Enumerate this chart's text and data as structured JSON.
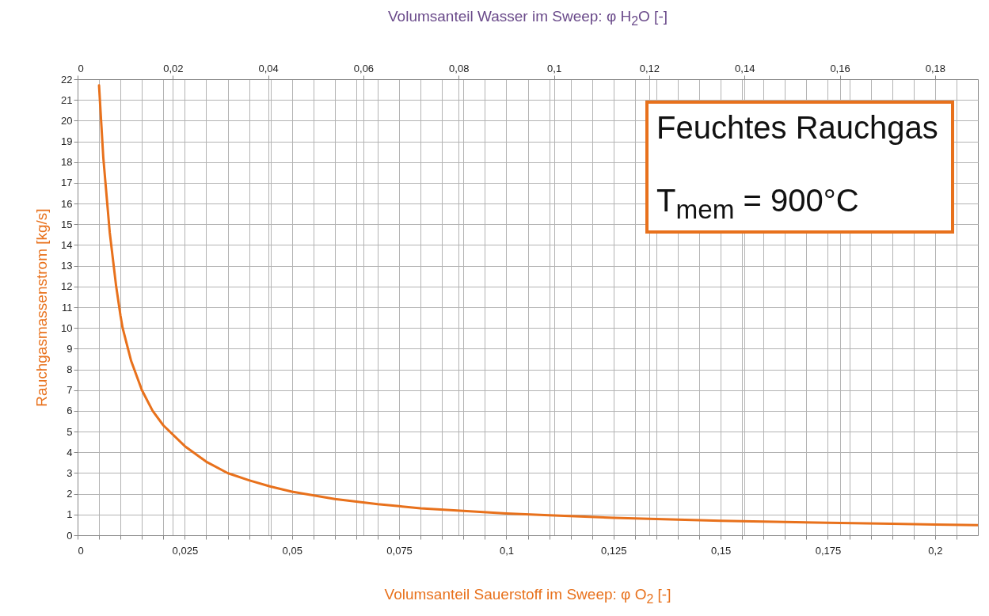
{
  "chart_data": {
    "type": "line",
    "xlabel": "Volumsanteil  Sauerstoff  im  Sweep:  φ O$_{2}$  [-]",
    "x2label": "Volumsanteil  Wasser  im  Sweep:  φ H$_{2}$O  [-]",
    "ylabel": "Rauchgasmassenstrom  [kg/s]",
    "annotations": [
      "Feuchtes Rauchgas",
      "T$_{mem}$ = 900°C"
    ],
    "xlim": [
      0,
      0.21
    ],
    "ylim": [
      0,
      22
    ],
    "x2lim": [
      0,
      0.189
    ],
    "xticks": [
      0,
      {
        "value": 0.005,
        "label": null
      },
      {
        "value": 0.01,
        "label": null
      },
      {
        "value": 0.015,
        "label": null
      },
      {
        "value": 0.02,
        "label": null
      },
      {
        "value": 0.025,
        "label": "0,025"
      },
      {
        "value": 0.03,
        "label": null
      },
      {
        "value": 0.035,
        "label": null
      },
      {
        "value": 0.04,
        "label": null
      },
      {
        "value": 0.045,
        "label": null
      },
      {
        "value": 0.05,
        "label": "0,05"
      },
      {
        "value": 0.055,
        "label": null
      },
      {
        "value": 0.06,
        "label": null
      },
      {
        "value": 0.065,
        "label": null
      },
      {
        "value": 0.07,
        "label": null
      },
      {
        "value": 0.075,
        "label": "0,075"
      },
      {
        "value": 0.08,
        "label": null
      },
      {
        "value": 0.085,
        "label": null
      },
      {
        "value": 0.09,
        "label": null
      },
      {
        "value": 0.095,
        "label": null
      },
      {
        "value": 0.1,
        "label": "0,1"
      },
      {
        "value": 0.105,
        "label": null
      },
      {
        "value": 0.11,
        "label": null
      },
      {
        "value": 0.115,
        "label": null
      },
      {
        "value": 0.12,
        "label": null
      },
      {
        "value": 0.125,
        "label": "0,125"
      },
      {
        "value": 0.13,
        "label": null
      },
      {
        "value": 0.135,
        "label": null
      },
      {
        "value": 0.14,
        "label": null
      },
      {
        "value": 0.145,
        "label": null
      },
      {
        "value": 0.15,
        "label": "0,15"
      },
      {
        "value": 0.155,
        "label": null
      },
      {
        "value": 0.16,
        "label": null
      },
      {
        "value": 0.165,
        "label": null
      },
      {
        "value": 0.17,
        "label": null
      },
      {
        "value": 0.175,
        "label": "0,175"
      },
      {
        "value": 0.18,
        "label": null
      },
      {
        "value": 0.185,
        "label": null
      },
      {
        "value": 0.19,
        "label": null
      },
      {
        "value": 0.195,
        "label": null
      },
      {
        "value": 0.2,
        "label": "0,2"
      },
      {
        "value": 0.205,
        "label": null
      }
    ],
    "x2ticks": [
      0,
      {
        "value": 0.02,
        "label": "0,02"
      },
      {
        "value": 0.04,
        "label": "0,04"
      },
      {
        "value": 0.06,
        "label": "0,06"
      },
      {
        "value": 0.08,
        "label": "0,08"
      },
      {
        "value": 0.1,
        "label": "0,1"
      },
      {
        "value": 0.12,
        "label": "0,12"
      },
      {
        "value": 0.14,
        "label": "0,14"
      },
      {
        "value": 0.16,
        "label": "0,16"
      },
      {
        "value": 0.18,
        "label": "0,18"
      }
    ],
    "yticks": [
      0,
      1,
      2,
      3,
      4,
      5,
      6,
      7,
      8,
      9,
      10,
      11,
      12,
      13,
      14,
      15,
      16,
      17,
      18,
      19,
      20,
      21,
      22
    ],
    "grid": true,
    "marker": "none",
    "line_style": "solid",
    "series": [
      {
        "color": "#e8711c",
        "x": [
          0.005,
          0.006,
          0.0075,
          0.009,
          0.01,
          0.0105,
          0.0125,
          0.015,
          0.0175,
          0.02,
          0.025,
          0.03,
          0.035,
          0.04,
          0.045,
          0.05,
          0.06,
          0.07,
          0.075,
          0.08,
          0.09,
          0.1,
          0.11,
          0.125,
          0.14,
          0.15,
          0.16,
          0.175,
          0.19,
          0.2,
          0.21
        ],
        "values": [
          21.7,
          18.2,
          14.6,
          12.0,
          10.6,
          10.0,
          8.4,
          7.0,
          6.0,
          5.3,
          4.3,
          3.55,
          3.0,
          2.65,
          2.35,
          2.1,
          1.75,
          1.5,
          1.4,
          1.3,
          1.17,
          1.05,
          0.96,
          0.84,
          0.75,
          0.7,
          0.66,
          0.6,
          0.55,
          0.52,
          0.49
        ]
      }
    ]
  }
}
